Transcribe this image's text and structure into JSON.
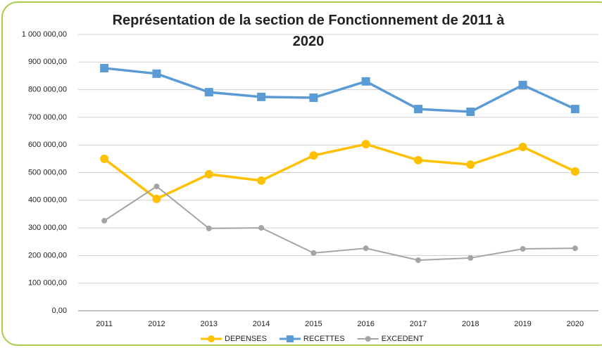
{
  "chart_data": {
    "type": "line",
    "title": "Représentation de la section de Fonctionnement de 2011 à 2020",
    "categories": [
      "2011",
      "2012",
      "2013",
      "2014",
      "2015",
      "2016",
      "2017",
      "2018",
      "2019",
      "2020"
    ],
    "series": [
      {
        "name": "DEPENSES",
        "color": "#ffc000",
        "marker": "circle",
        "values": [
          550000,
          405000,
          494000,
          471000,
          562000,
          603000,
          545000,
          529000,
          593000,
          504000
        ]
      },
      {
        "name": "RECETTES",
        "color": "#5b9bd5",
        "marker": "square",
        "values": [
          878000,
          858000,
          791000,
          774000,
          771000,
          830000,
          730000,
          720000,
          817000,
          730000
        ]
      },
      {
        "name": "EXCEDENT",
        "color": "#a5a5a5",
        "marker": "circle",
        "values": [
          326000,
          450000,
          298000,
          300000,
          209000,
          226000,
          183000,
          191000,
          224000,
          226000
        ]
      }
    ],
    "ylim": [
      0,
      1000000
    ],
    "yticks": [
      {
        "value": 0,
        "label": "0,00"
      },
      {
        "value": 100000,
        "label": "100 000,00"
      },
      {
        "value": 200000,
        "label": "200 000,00"
      },
      {
        "value": 300000,
        "label": "300 000,00"
      },
      {
        "value": 400000,
        "label": "400 000,00"
      },
      {
        "value": 500000,
        "label": "500 000,00"
      },
      {
        "value": 600000,
        "label": "600 000,00"
      },
      {
        "value": 700000,
        "label": "700 000,00"
      },
      {
        "value": 800000,
        "label": "800 000,00"
      },
      {
        "value": 900000,
        "label": "900 000,00"
      },
      {
        "value": 1000000,
        "label": "1 000 000,00"
      }
    ],
    "grid": true,
    "legend": "bottom"
  }
}
